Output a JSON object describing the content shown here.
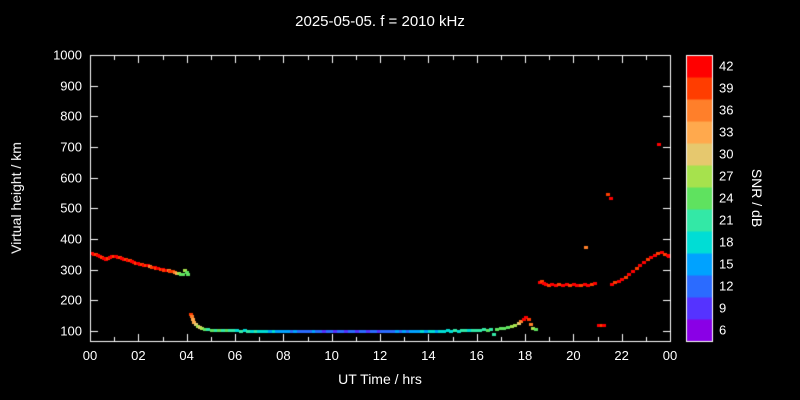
{
  "colors": {
    "background": "#000000",
    "text": "#ffffff",
    "frame": "#ffffff"
  },
  "chart_data": {
    "type": "scatter",
    "title": "2025-05-05. f = 2010 kHz",
    "xlabel": "UT Time / hrs",
    "ylabel": "Virtual height / km",
    "colorbar_label": "SNR / dB",
    "xlim": [
      0,
      24
    ],
    "ylim": [
      67,
      1000
    ],
    "grid": false,
    "x_tick_values": [
      0,
      2,
      4,
      6,
      8,
      10,
      12,
      14,
      16,
      18,
      20,
      22,
      24
    ],
    "x_tick_labels": [
      "00",
      "02",
      "04",
      "06",
      "08",
      "10",
      "12",
      "14",
      "16",
      "18",
      "20",
      "22",
      "00"
    ],
    "x_minor_ticks": [
      1,
      3,
      5,
      7,
      9,
      11,
      13,
      15,
      17,
      19,
      21,
      23
    ],
    "y_tick_values": [
      100,
      200,
      300,
      400,
      500,
      600,
      700,
      800,
      900,
      1000
    ],
    "colorbar": {
      "min": 4.5,
      "max": 43.5,
      "tick_values": [
        6,
        9,
        12,
        15,
        18,
        21,
        24,
        27,
        30,
        33,
        36,
        39,
        42
      ],
      "band_colors": [
        "#8a00e6",
        "#5533ff",
        "#2b6bff",
        "#00a2ff",
        "#00ddd5",
        "#33e8a6",
        "#5fe25f",
        "#a6e24d",
        "#e6c86e",
        "#ffa94d",
        "#ff7f2a",
        "#ff3d00",
        "#ff0000"
      ]
    },
    "points": [
      [
        0.08,
        355,
        42
      ],
      [
        0.17,
        352,
        42
      ],
      [
        0.25,
        350,
        39
      ],
      [
        0.33,
        348,
        42
      ],
      [
        0.42,
        345,
        42
      ],
      [
        0.5,
        342,
        39
      ],
      [
        0.58,
        338,
        42
      ],
      [
        0.67,
        336,
        42
      ],
      [
        0.75,
        338,
        39
      ],
      [
        0.83,
        340,
        42
      ],
      [
        0.92,
        343,
        42
      ],
      [
        1.0,
        345,
        39
      ],
      [
        1.08,
        344,
        42
      ],
      [
        1.17,
        342,
        42
      ],
      [
        1.25,
        340,
        39
      ],
      [
        1.33,
        338,
        42
      ],
      [
        1.42,
        336,
        42
      ],
      [
        1.5,
        334,
        39
      ],
      [
        1.58,
        332,
        42
      ],
      [
        1.67,
        330,
        39
      ],
      [
        1.75,
        328,
        42
      ],
      [
        1.83,
        326,
        42
      ],
      [
        1.92,
        323,
        39
      ],
      [
        2.0,
        320,
        42
      ],
      [
        2.08,
        319,
        42
      ],
      [
        2.17,
        318,
        39
      ],
      [
        2.25,
        316,
        42
      ],
      [
        2.33,
        315,
        39
      ],
      [
        2.42,
        314,
        42
      ],
      [
        2.5,
        312,
        36
      ],
      [
        2.58,
        310,
        39
      ],
      [
        2.67,
        308,
        42
      ],
      [
        2.75,
        306,
        39
      ],
      [
        2.83,
        305,
        42
      ],
      [
        2.92,
        303,
        39
      ],
      [
        3.0,
        301,
        42
      ],
      [
        3.08,
        300,
        39
      ],
      [
        3.17,
        300,
        42
      ],
      [
        3.25,
        298,
        36
      ],
      [
        3.33,
        296,
        39
      ],
      [
        3.42,
        294,
        39
      ],
      [
        3.5,
        292,
        36
      ],
      [
        3.58,
        290,
        33
      ],
      [
        3.67,
        288,
        27
      ],
      [
        3.75,
        286,
        24
      ],
      [
        3.83,
        284,
        24
      ],
      [
        3.92,
        299,
        27
      ],
      [
        4.0,
        292,
        24
      ],
      [
        4.05,
        285,
        24
      ],
      [
        4.17,
        155,
        39
      ],
      [
        4.22,
        150,
        36
      ],
      [
        4.27,
        140,
        33
      ],
      [
        4.32,
        130,
        33
      ],
      [
        4.38,
        124,
        30
      ],
      [
        4.45,
        117,
        27
      ],
      [
        4.55,
        112,
        30
      ],
      [
        4.65,
        108,
        27
      ],
      [
        4.75,
        106,
        24
      ],
      [
        4.9,
        105,
        21
      ],
      [
        5.05,
        104,
        24
      ],
      [
        5.2,
        103,
        21
      ],
      [
        5.35,
        104,
        24
      ],
      [
        5.5,
        102,
        21
      ],
      [
        5.65,
        103,
        24
      ],
      [
        5.8,
        102,
        21
      ],
      [
        5.95,
        103,
        21
      ],
      [
        6.1,
        102,
        18
      ],
      [
        6.25,
        101,
        21
      ],
      [
        6.4,
        102,
        18
      ],
      [
        6.55,
        101,
        21
      ],
      [
        6.7,
        100,
        18
      ],
      [
        6.85,
        101,
        21
      ],
      [
        7.0,
        100,
        18
      ],
      [
        7.15,
        100,
        18
      ],
      [
        7.3,
        101,
        18
      ],
      [
        7.45,
        100,
        15
      ],
      [
        7.6,
        100,
        18
      ],
      [
        7.75,
        99,
        15
      ],
      [
        7.9,
        100,
        15
      ],
      [
        8.05,
        100,
        15
      ],
      [
        8.2,
        99,
        15
      ],
      [
        8.35,
        100,
        12
      ],
      [
        8.5,
        99,
        15
      ],
      [
        8.65,
        100,
        12
      ],
      [
        8.8,
        99,
        12
      ],
      [
        8.95,
        100,
        12
      ],
      [
        9.1,
        99,
        12
      ],
      [
        9.25,
        100,
        15
      ],
      [
        9.4,
        99,
        12
      ],
      [
        9.55,
        100,
        12
      ],
      [
        9.7,
        99,
        9
      ],
      [
        9.85,
        100,
        12
      ],
      [
        10.0,
        99,
        12
      ],
      [
        10.15,
        100,
        9
      ],
      [
        10.3,
        99,
        12
      ],
      [
        10.45,
        100,
        12
      ],
      [
        10.6,
        99,
        9
      ],
      [
        10.75,
        100,
        12
      ],
      [
        10.9,
        99,
        12
      ],
      [
        11.05,
        100,
        9
      ],
      [
        11.2,
        99,
        12
      ],
      [
        11.35,
        100,
        12
      ],
      [
        11.5,
        99,
        9
      ],
      [
        11.65,
        98,
        12
      ],
      [
        11.8,
        99,
        12
      ],
      [
        11.95,
        98,
        9
      ],
      [
        12.1,
        99,
        12
      ],
      [
        12.25,
        98,
        12
      ],
      [
        12.4,
        99,
        12
      ],
      [
        12.55,
        100,
        12
      ],
      [
        12.7,
        99,
        15
      ],
      [
        12.85,
        100,
        12
      ],
      [
        13.0,
        100,
        15
      ],
      [
        13.15,
        100,
        12
      ],
      [
        13.3,
        100,
        15
      ],
      [
        13.45,
        101,
        15
      ],
      [
        13.6,
        100,
        15
      ],
      [
        13.75,
        101,
        18
      ],
      [
        13.9,
        100,
        15
      ],
      [
        14.05,
        101,
        18
      ],
      [
        14.2,
        100,
        18
      ],
      [
        14.35,
        101,
        15
      ],
      [
        14.5,
        100,
        18
      ],
      [
        14.65,
        101,
        18
      ],
      [
        14.8,
        102,
        18
      ],
      [
        14.95,
        101,
        18
      ],
      [
        15.1,
        102,
        21
      ],
      [
        15.25,
        101,
        18
      ],
      [
        15.4,
        102,
        21
      ],
      [
        15.55,
        103,
        21
      ],
      [
        15.7,
        102,
        18
      ],
      [
        15.85,
        103,
        21
      ],
      [
        16.0,
        104,
        21
      ],
      [
        16.15,
        103,
        21
      ],
      [
        16.3,
        105,
        21
      ],
      [
        16.45,
        104,
        24
      ],
      [
        16.6,
        106,
        21
      ],
      [
        16.7,
        90,
        21
      ],
      [
        16.85,
        107,
        24
      ],
      [
        17.0,
        108,
        24
      ],
      [
        17.15,
        110,
        24
      ],
      [
        17.3,
        112,
        24
      ],
      [
        17.45,
        115,
        27
      ],
      [
        17.6,
        118,
        27
      ],
      [
        17.75,
        125,
        30
      ],
      [
        17.85,
        132,
        36
      ],
      [
        17.95,
        140,
        42
      ],
      [
        18.05,
        146,
        42
      ],
      [
        18.15,
        138,
        39
      ],
      [
        18.25,
        124,
        36
      ],
      [
        18.35,
        111,
        27
      ],
      [
        18.45,
        107,
        24
      ],
      [
        18.6,
        258,
        42
      ],
      [
        18.7,
        262,
        39
      ],
      [
        18.78,
        255,
        42
      ],
      [
        18.88,
        252,
        42
      ],
      [
        18.98,
        250,
        39
      ],
      [
        19.12,
        253,
        42
      ],
      [
        19.27,
        251,
        42
      ],
      [
        19.42,
        254,
        39
      ],
      [
        19.57,
        250,
        42
      ],
      [
        19.72,
        252,
        42
      ],
      [
        19.87,
        250,
        39
      ],
      [
        20.02,
        254,
        42
      ],
      [
        20.17,
        251,
        42
      ],
      [
        20.32,
        250,
        39
      ],
      [
        20.47,
        252,
        42
      ],
      [
        20.52,
        375,
        36
      ],
      [
        20.62,
        250,
        42
      ],
      [
        20.77,
        253,
        39
      ],
      [
        20.9,
        255,
        42
      ],
      [
        21.05,
        120,
        42
      ],
      [
        21.18,
        118,
        39
      ],
      [
        21.28,
        120,
        42
      ],
      [
        21.45,
        545,
        39
      ],
      [
        21.55,
        535,
        42
      ],
      [
        21.62,
        252,
        42
      ],
      [
        21.72,
        258,
        39
      ],
      [
        21.87,
        262,
        42
      ],
      [
        22.02,
        268,
        42
      ],
      [
        22.17,
        275,
        39
      ],
      [
        22.32,
        285,
        42
      ],
      [
        22.47,
        295,
        42
      ],
      [
        22.62,
        305,
        39
      ],
      [
        22.77,
        315,
        42
      ],
      [
        22.92,
        325,
        42
      ],
      [
        23.07,
        333,
        39
      ],
      [
        23.22,
        340,
        42
      ],
      [
        23.37,
        348,
        42
      ],
      [
        23.5,
        353,
        39
      ],
      [
        23.55,
        710,
        42
      ],
      [
        23.67,
        356,
        42
      ],
      [
        23.8,
        352,
        39
      ],
      [
        23.9,
        348,
        42
      ],
      [
        23.97,
        345,
        42
      ]
    ]
  }
}
